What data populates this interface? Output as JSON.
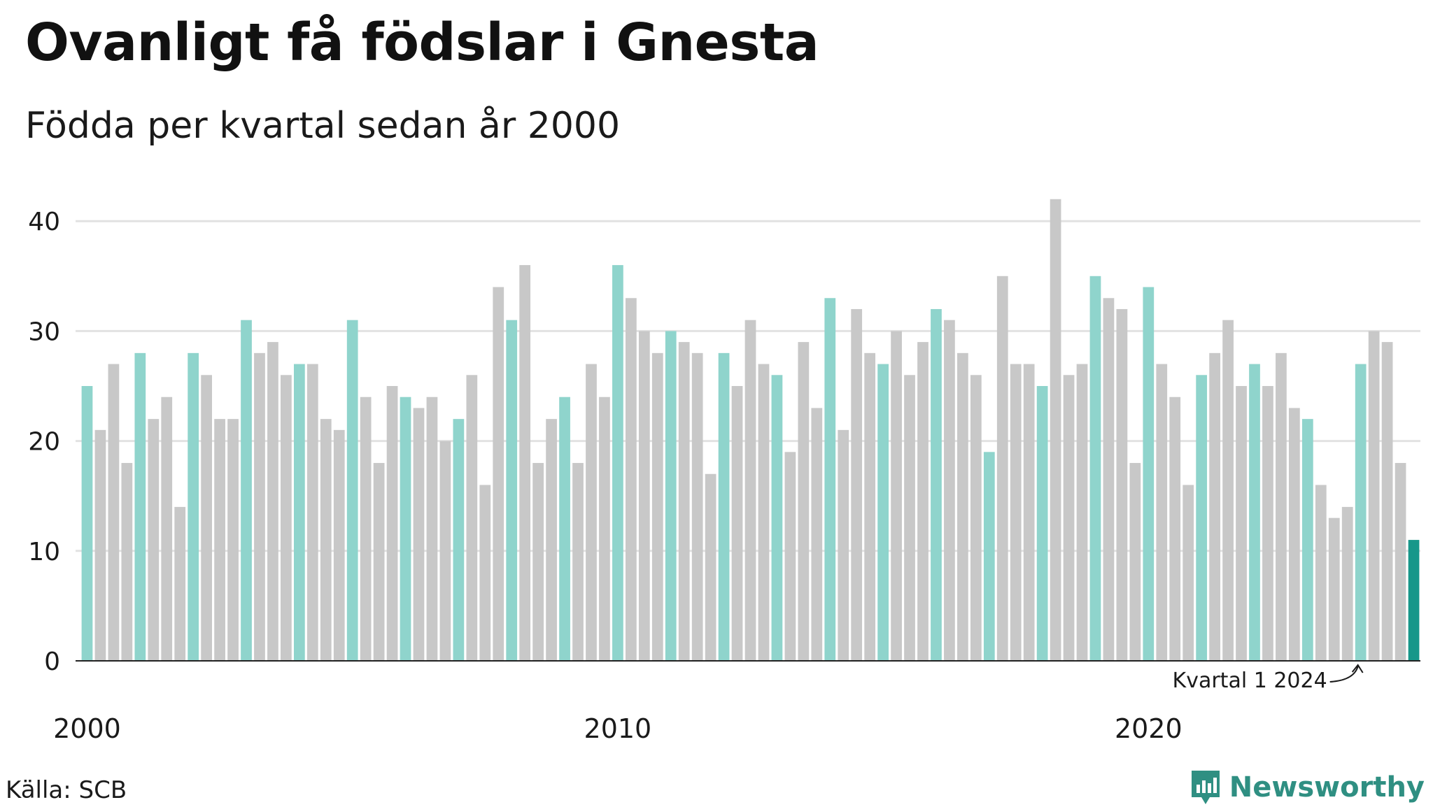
{
  "title": "Ovanligt få födslar i Gnesta",
  "subtitle": "Födda per kvartal sedan år 2000",
  "source": "Källa: SCB",
  "brand": "Newsworthy",
  "colors": {
    "q1": "#8fd4cc",
    "other": "#c8c8c8",
    "latest": "#17978a",
    "grid": "#e2e2e2",
    "axis": "#222222",
    "brand": "#2f8f82"
  },
  "chart_data": {
    "type": "bar",
    "title": "Ovanligt få födslar i Gnesta",
    "subtitle": "Födda per kvartal sedan år 2000",
    "xlabel": "",
    "ylabel": "",
    "ylim": [
      0,
      42
    ],
    "yticks": [
      0,
      10,
      20,
      30,
      40
    ],
    "xtick_labels": [
      {
        "label": "2000",
        "index": 0
      },
      {
        "label": "2010",
        "index": 40
      },
      {
        "label": "2020",
        "index": 80
      }
    ],
    "grid": true,
    "start": "2000 Q1",
    "annotation": {
      "text": "Kvartal 1 2024",
      "index": 96
    },
    "values": [
      25,
      21,
      27,
      18,
      28,
      22,
      24,
      14,
      28,
      26,
      22,
      22,
      31,
      28,
      29,
      26,
      27,
      27,
      22,
      21,
      31,
      24,
      18,
      25,
      24,
      23,
      24,
      20,
      22,
      26,
      16,
      34,
      31,
      36,
      18,
      22,
      24,
      18,
      27,
      24,
      36,
      33,
      30,
      28,
      30,
      29,
      28,
      17,
      28,
      25,
      31,
      27,
      26,
      19,
      29,
      23,
      33,
      21,
      32,
      28,
      27,
      30,
      26,
      29,
      32,
      31,
      28,
      26,
      19,
      35,
      27,
      27,
      25,
      42,
      26,
      27,
      35,
      33,
      32,
      18,
      34,
      27,
      24,
      16,
      26,
      28,
      31,
      25,
      27,
      25,
      28,
      23,
      22,
      16,
      13,
      14,
      27,
      30,
      29,
      18,
      11
    ]
  }
}
